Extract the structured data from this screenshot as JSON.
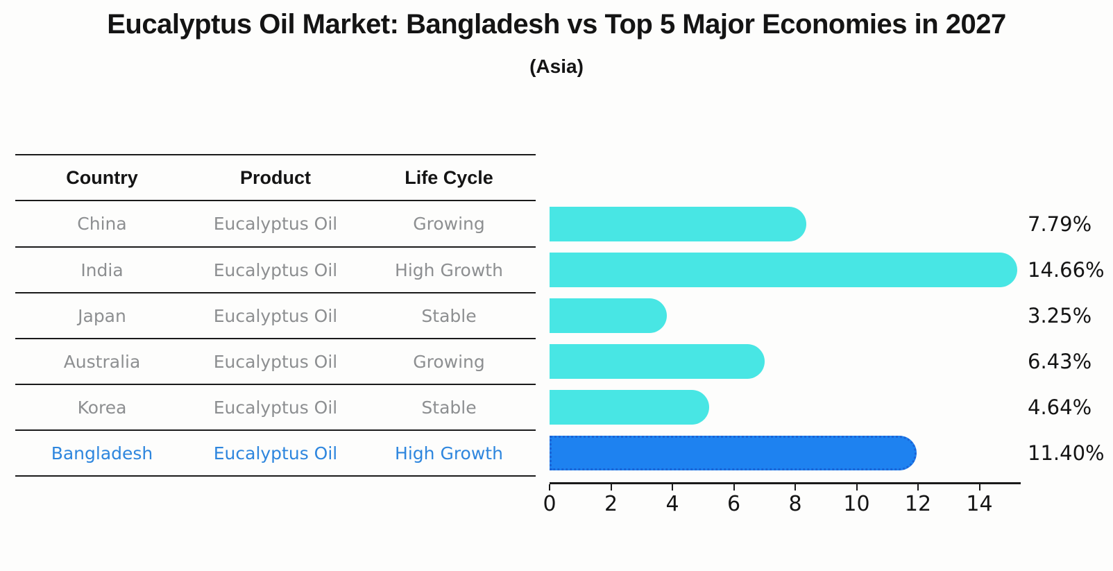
{
  "title": "Eucalyptus Oil Market: Bangladesh vs Top 5 Major Economies in 2027",
  "subtitle": "(Asia)",
  "table": {
    "headers": [
      "Country",
      "Product",
      "Life Cycle"
    ],
    "rows": [
      {
        "country": "China",
        "product": "Eucalyptus Oil",
        "life_cycle": "Growing"
      },
      {
        "country": "India",
        "product": "Eucalyptus Oil",
        "life_cycle": "High Growth"
      },
      {
        "country": "Japan",
        "product": "Eucalyptus Oil",
        "life_cycle": "Stable"
      },
      {
        "country": "Australia",
        "product": "Eucalyptus Oil",
        "life_cycle": "Growing"
      },
      {
        "country": "Korea",
        "product": "Eucalyptus Oil",
        "life_cycle": "Stable"
      },
      {
        "country": "Bangladesh",
        "product": "Eucalyptus Oil",
        "life_cycle": "High Growth"
      }
    ]
  },
  "chart_data": {
    "type": "bar",
    "orientation": "horizontal",
    "title": "Eucalyptus Oil Market: Bangladesh vs Top 5 Major Economies in 2027",
    "subtitle": "(Asia)",
    "categories": [
      "China",
      "India",
      "Japan",
      "Australia",
      "Korea",
      "Bangladesh"
    ],
    "values": [
      7.79,
      14.66,
      3.25,
      6.43,
      4.64,
      11.4
    ],
    "value_labels": [
      "7.79%",
      "14.66%",
      "3.25%",
      "6.43%",
      "4.64%",
      "11.40%"
    ],
    "x_ticks": [
      "0",
      "2",
      "4",
      "6",
      "8",
      "10",
      "12",
      "14"
    ],
    "x_tick_values": [
      0,
      2,
      4,
      6,
      8,
      10,
      12,
      14
    ],
    "xlim": [
      0,
      15.3
    ],
    "xlabel": "",
    "ylabel": "",
    "grid": false,
    "legend": false,
    "highlight_category": "Bangladesh",
    "bar_color": "#48E6E4",
    "highlight_bar_color": "#1E82F0",
    "highlight_bar_border_color": "#1A64D6",
    "highlight_text_color": "#2E86DE",
    "axis_color": "#1a1a1a",
    "text_color": "#141414",
    "muted_text_color": "#8d8f91"
  }
}
